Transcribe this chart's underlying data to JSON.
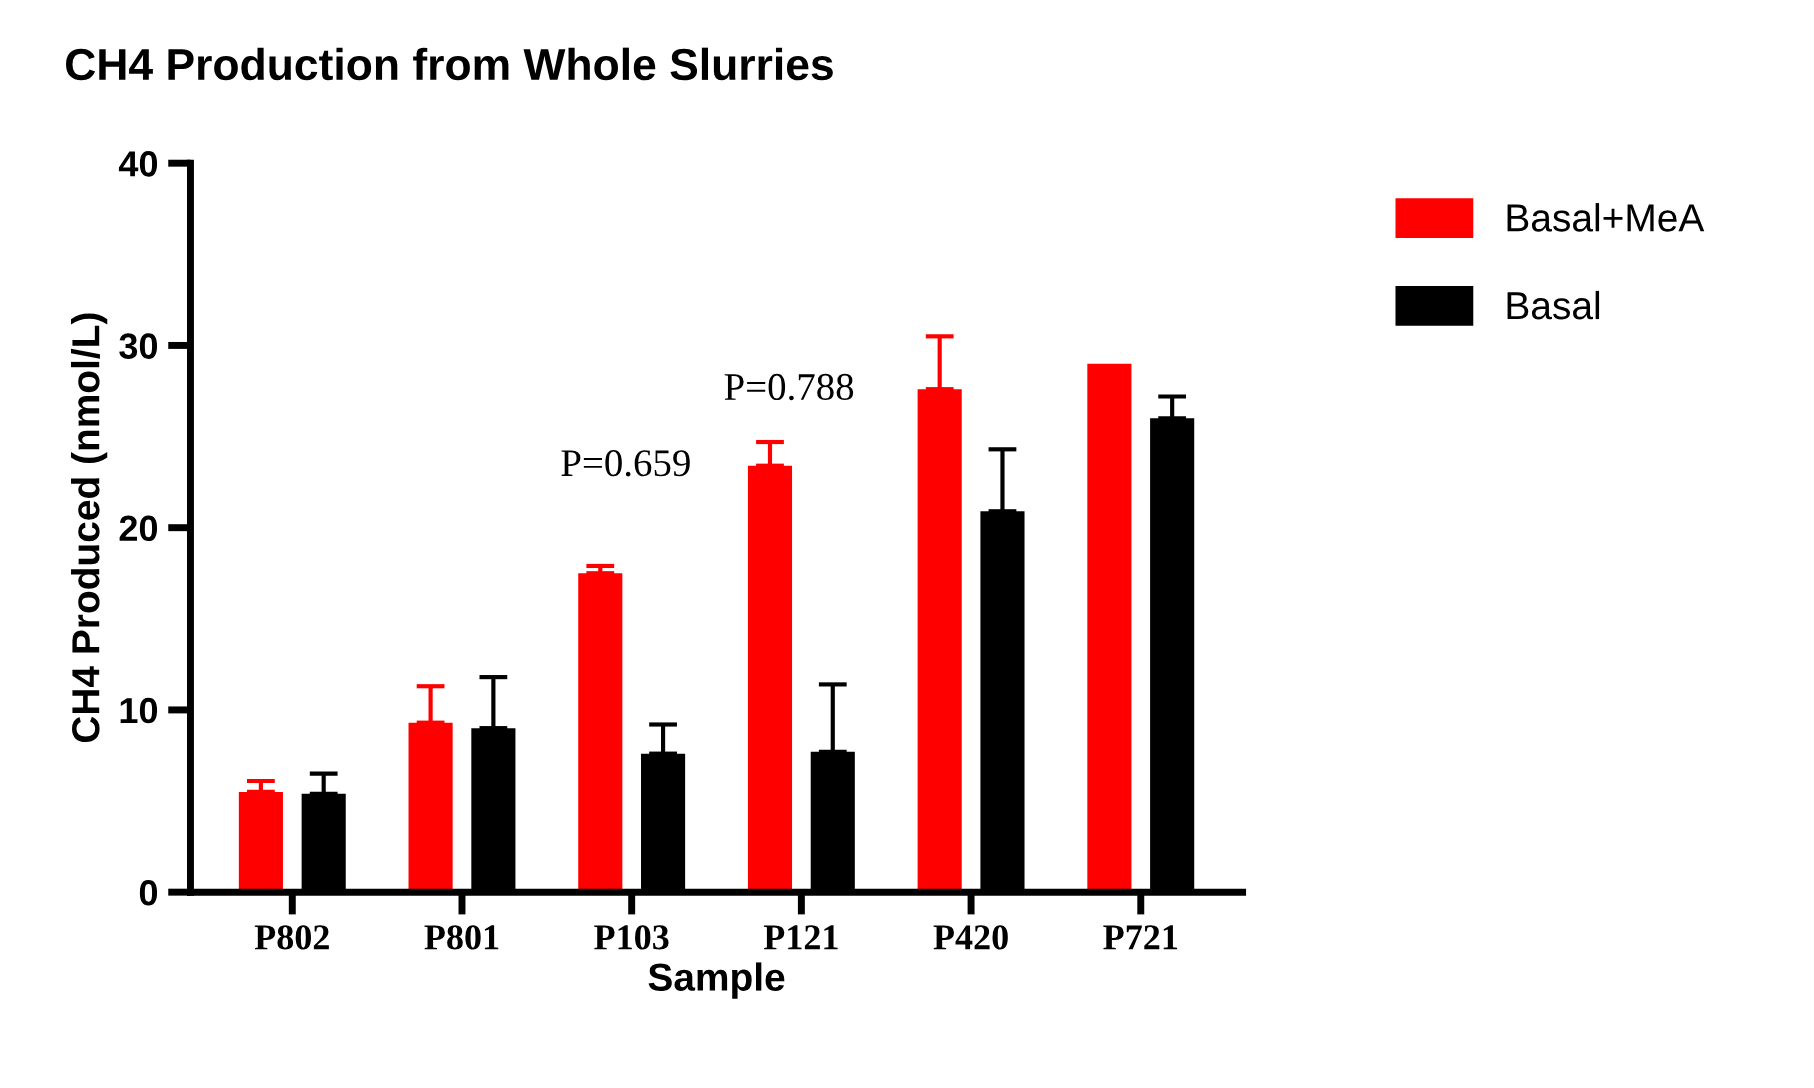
{
  "chart_data": {
    "type": "bar",
    "title": "CH4 Production from Whole Slurries",
    "xlabel": "Sample",
    "ylabel": "CH4 Produced (nmol/L)",
    "categories": [
      "P802",
      "P801",
      "P103",
      "P121",
      "P420",
      "P721"
    ],
    "series": [
      {
        "name": "Basal+MeA",
        "color": "#ff0000",
        "values": [
          5.5,
          9.3,
          17.5,
          23.4,
          27.6,
          29.0
        ],
        "errors": [
          [
            5.5,
            6.1
          ],
          [
            9.3,
            11.3
          ],
          [
            17.5,
            17.9
          ],
          [
            23.4,
            24.7
          ],
          [
            27.6,
            30.5
          ],
          null
        ]
      },
      {
        "name": "Basal",
        "color": "#000000",
        "values": [
          5.4,
          9.0,
          7.6,
          7.7,
          20.9,
          26.0
        ],
        "errors": [
          [
            5.4,
            6.5
          ],
          [
            9.0,
            11.8
          ],
          [
            7.6,
            9.2
          ],
          [
            7.7,
            11.4
          ],
          [
            20.9,
            24.3
          ],
          [
            26.0,
            27.2
          ]
        ]
      }
    ],
    "ylim": [
      0,
      40
    ],
    "yticks": [
      0,
      10,
      20,
      30,
      40
    ],
    "grid": false,
    "legend": "top right",
    "annotations": [
      "P=0.659",
      "P=0.788"
    ]
  }
}
